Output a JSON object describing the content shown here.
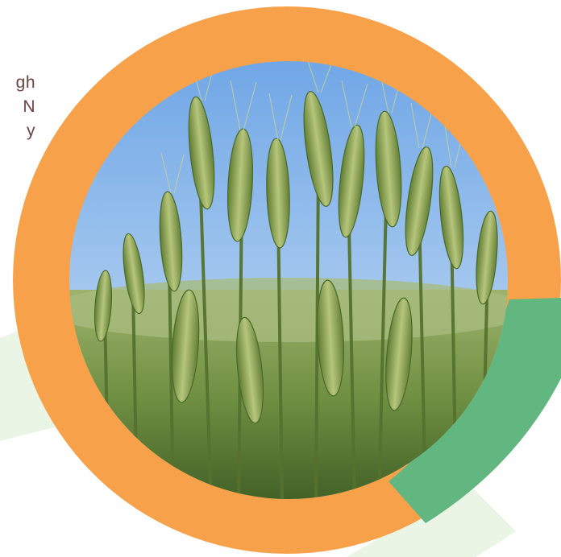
{
  "intro": {
    "lines": [
      "gh",
      "N",
      "y"
    ]
  },
  "colors": {
    "ring_orange": "#f7a24b",
    "ring_green": "#62b680",
    "pale_green_band": "#eaf5e6",
    "text_brown": "#6b4340",
    "sky_blue": "#8fb8ea",
    "wheat_green": "#7c9a4e"
  },
  "image": {
    "subject": "wheat-field-photo"
  }
}
